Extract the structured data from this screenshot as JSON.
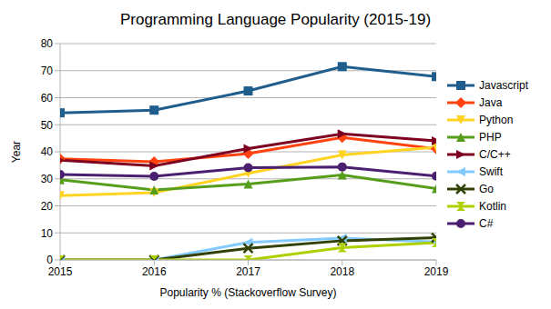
{
  "chart_data": {
    "type": "line",
    "title": "Programming Language Popularity (2015-19)",
    "x_label": "Popularity % (Stackoverflow Survey)",
    "y_label": "Year",
    "x": [
      2015,
      2016,
      2017,
      2018,
      2019
    ],
    "xlim": [
      2015,
      2019
    ],
    "xticks": [
      2015,
      2016,
      2017,
      2018,
      2019
    ],
    "ylim": [
      0,
      80
    ],
    "yticks": [
      0,
      10,
      20,
      30,
      40,
      50,
      60,
      70,
      80
    ],
    "grid": true,
    "legend": "right",
    "series": [
      {
        "name": "Javascript",
        "color": "#1f5d8c",
        "marker": "square",
        "values": [
          54.4,
          55.4,
          62.5,
          71.5,
          67.8
        ]
      },
      {
        "name": "Java",
        "color": "#ff420e",
        "marker": "diamond",
        "values": [
          37.4,
          36.3,
          39.3,
          45.3,
          41.1
        ]
      },
      {
        "name": "Python",
        "color": "#ffd320",
        "marker": "triangle_down",
        "values": [
          23.8,
          24.9,
          32.0,
          38.8,
          41.7
        ]
      },
      {
        "name": "PHP",
        "color": "#579d1c",
        "marker": "triangle_up",
        "values": [
          29.7,
          25.9,
          28.1,
          31.4,
          26.4
        ]
      },
      {
        "name": "C/C++",
        "color": "#7e0021",
        "marker": "triangle_right",
        "values": [
          36.9,
          34.8,
          41.2,
          46.6,
          44.0
        ]
      },
      {
        "name": "Swift",
        "color": "#83caff",
        "marker": "triangle_left",
        "values": [
          0,
          0,
          6.5,
          8.1,
          6.6
        ]
      },
      {
        "name": "Go",
        "color": "#314004",
        "marker": "x",
        "values": [
          0,
          0,
          4.3,
          7.1,
          8.2
        ]
      },
      {
        "name": "Kotlin",
        "color": "#aecf00",
        "marker": "hourglass",
        "values": [
          0,
          0,
          0,
          4.5,
          6.4
        ]
      },
      {
        "name": "C#",
        "color": "#4b1f6f",
        "marker": "circle",
        "values": [
          31.6,
          30.9,
          34.1,
          34.4,
          31.0
        ]
      }
    ]
  }
}
